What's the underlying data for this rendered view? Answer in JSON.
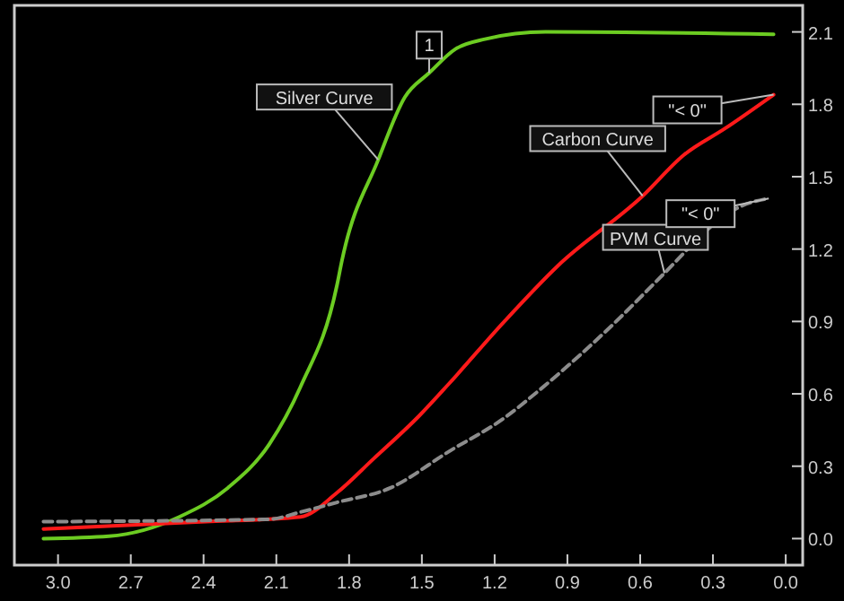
{
  "chart_data": {
    "type": "line",
    "xlim": [
      3.18,
      -0.07
    ],
    "ylim": [
      -0.11,
      2.21
    ],
    "xticks": [
      {
        "value": 3.0,
        "label": "3.0"
      },
      {
        "value": 2.7,
        "label": "2.7"
      },
      {
        "value": 2.4,
        "label": "2.4"
      },
      {
        "value": 2.1,
        "label": "2.1"
      },
      {
        "value": 1.8,
        "label": "1.8"
      },
      {
        "value": 1.5,
        "label": "1.5"
      },
      {
        "value": 1.2,
        "label": "1.2"
      },
      {
        "value": 0.9,
        "label": "0.9"
      },
      {
        "value": 0.6,
        "label": "0.6"
      },
      {
        "value": 0.3,
        "label": "0.3"
      },
      {
        "value": 0.0,
        "label": "0.0"
      }
    ],
    "yticks": [
      {
        "value": 0.0,
        "label": "0.0"
      },
      {
        "value": 0.3,
        "label": "0.3"
      },
      {
        "value": 0.6,
        "label": "0.6"
      },
      {
        "value": 0.9,
        "label": "0.9"
      },
      {
        "value": 1.2,
        "label": "1.2"
      },
      {
        "value": 1.5,
        "label": "1.5"
      },
      {
        "value": 1.8,
        "label": "1.8"
      },
      {
        "value": 2.1,
        "label": "2.1"
      }
    ],
    "grid": false,
    "marker": "none",
    "series": [
      {
        "name": "Silver Curve",
        "color": "#6ccc22",
        "line_style": "solid",
        "x": [
          3.06,
          2.79,
          2.5,
          2.3,
          2.13,
          2.0,
          1.85,
          1.83,
          1.68,
          1.57,
          1.47,
          1.36,
          1.24,
          0.99,
          0.05
        ],
        "values": [
          0.0,
          0.01,
          0.09,
          0.21,
          0.39,
          0.63,
          1.05,
          1.15,
          1.57,
          1.83,
          1.93,
          2.03,
          2.07,
          2.1,
          2.09
        ]
      },
      {
        "name": "Carbon Curve",
        "color": "#ff1a1a",
        "line_style": "solid",
        "x": [
          3.06,
          2.39,
          2.0,
          1.85,
          1.7,
          1.51,
          1.39,
          1.16,
          0.94,
          0.59,
          0.42,
          0.25,
          0.05
        ],
        "values": [
          0.04,
          0.07,
          0.09,
          0.19,
          0.33,
          0.51,
          0.64,
          0.9,
          1.13,
          1.42,
          1.59,
          1.7,
          1.84
        ]
      },
      {
        "name": "PVM Curve",
        "color": "#8c8c8c",
        "line_style": "dashed",
        "x": [
          3.06,
          2.13,
          2.0,
          1.85,
          1.63,
          1.39,
          1.16,
          1.01,
          0.72,
          0.5,
          0.3,
          0.2,
          0.07
        ],
        "values": [
          0.07,
          0.08,
          0.11,
          0.15,
          0.21,
          0.36,
          0.5,
          0.62,
          0.88,
          1.1,
          1.3,
          1.37,
          1.41
        ]
      }
    ],
    "annotations": [
      {
        "text": "1",
        "x": 1.47,
        "y": 1.93
      },
      {
        "text": "\"< 0\"",
        "x": 0.05,
        "y": 1.84
      },
      {
        "text": "\"< 0\"",
        "x": 0.07,
        "y": 1.41
      }
    ]
  }
}
